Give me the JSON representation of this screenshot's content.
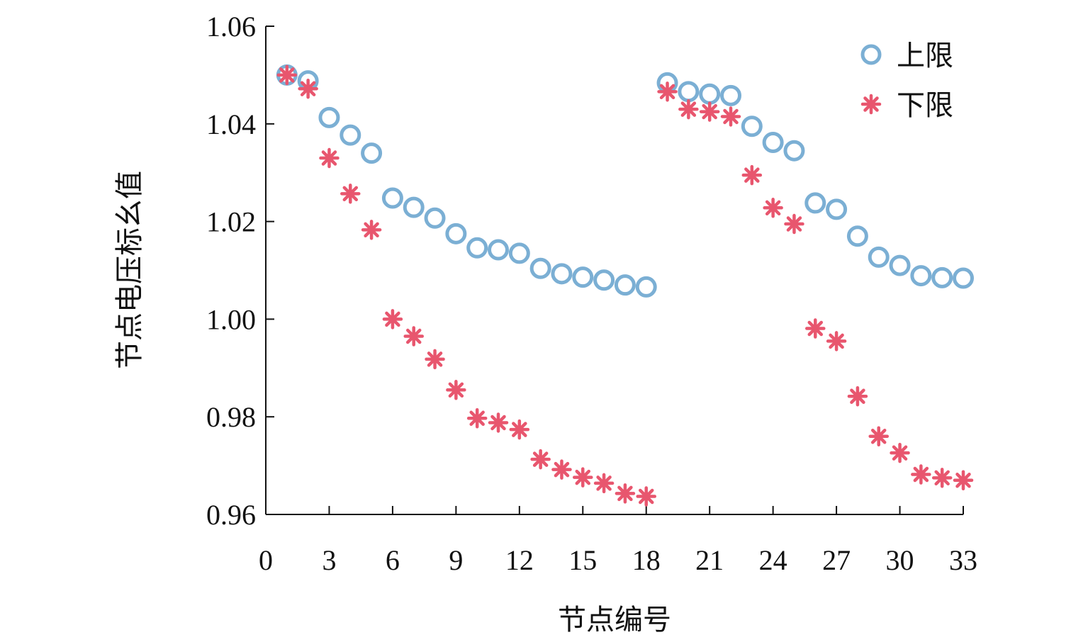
{
  "chart_data": {
    "type": "scatter",
    "title": "",
    "xlabel": "节点编号",
    "ylabel": "节点电压标幺值",
    "xlim": [
      0,
      33
    ],
    "ylim": [
      0.96,
      1.06
    ],
    "xticks": [
      "0",
      "3",
      "6",
      "9",
      "12",
      "15",
      "18",
      "21",
      "24",
      "27",
      "30",
      "33"
    ],
    "yticks": [
      "0.96",
      "0.98",
      "1.00",
      "1.02",
      "1.04",
      "1.06"
    ],
    "grid": false,
    "legend_position": "top-right",
    "series": [
      {
        "name": "上限",
        "marker": "circle",
        "color": "#7bafd4",
        "x": [
          1,
          2,
          3,
          4,
          5,
          6,
          7,
          8,
          9,
          10,
          11,
          12,
          13,
          14,
          15,
          16,
          17,
          18,
          19,
          20,
          21,
          22,
          23,
          24,
          25,
          26,
          27,
          28,
          29,
          30,
          31,
          32,
          33
        ],
        "y": [
          1.05,
          1.0488,
          1.0413,
          1.0377,
          1.034,
          1.0248,
          1.0229,
          1.0207,
          1.0175,
          1.0146,
          1.0142,
          1.0135,
          1.0104,
          1.0093,
          1.0086,
          1.008,
          1.007,
          1.0066,
          1.0484,
          1.0466,
          1.0461,
          1.0458,
          1.0395,
          1.0362,
          1.0345,
          1.0238,
          1.0225,
          1.017,
          1.0127,
          1.011,
          1.0089,
          1.0085,
          1.0084
        ]
      },
      {
        "name": "下限",
        "marker": "asterisk",
        "color": "#e8566e",
        "x": [
          1,
          2,
          3,
          4,
          5,
          6,
          7,
          8,
          9,
          10,
          11,
          12,
          13,
          14,
          15,
          16,
          17,
          18,
          19,
          20,
          21,
          22,
          23,
          24,
          25,
          26,
          27,
          28,
          29,
          30,
          31,
          32,
          33
        ],
        "y": [
          1.05,
          1.0472,
          1.033,
          1.0257,
          1.0183,
          1.0,
          0.9965,
          0.9918,
          0.9855,
          0.9797,
          0.9788,
          0.9774,
          0.9713,
          0.9692,
          0.9676,
          0.9664,
          0.9643,
          0.9637,
          1.0466,
          1.043,
          1.0425,
          1.0415,
          1.0295,
          1.0228,
          1.0195,
          0.9981,
          0.9955,
          0.9842,
          0.976,
          0.9726,
          0.9682,
          0.9675,
          0.967
        ]
      }
    ]
  }
}
